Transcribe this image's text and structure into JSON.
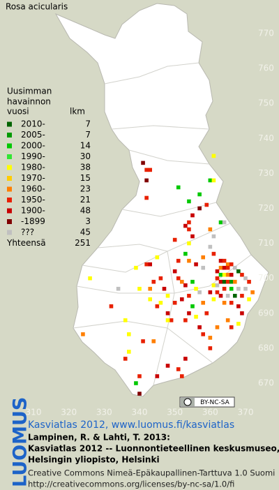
{
  "title": "Rosa acicularis",
  "legend": {
    "heading": [
      "Uusimman",
      "havainnon",
      "vuosi"
    ],
    "count_heading": "lkm",
    "items": [
      {
        "label": "2010-",
        "count": 7,
        "color": "#006400"
      },
      {
        "label": "2005-",
        "count": 7,
        "color": "#009a00"
      },
      {
        "label": "2000-",
        "count": 14,
        "color": "#00c800"
      },
      {
        "label": "1990-",
        "count": 30,
        "color": "#33e633"
      },
      {
        "label": "1980-",
        "count": 38,
        "color": "#ffff00"
      },
      {
        "label": "1970-",
        "count": 15,
        "color": "#ffcc00"
      },
      {
        "label": "1960-",
        "count": 23,
        "color": "#ff7f00"
      },
      {
        "label": "1950-",
        "count": 21,
        "color": "#e82000"
      },
      {
        "label": "1900-",
        "count": 48,
        "color": "#c80000"
      },
      {
        "label": "-1899",
        "count": 3,
        "color": "#800000"
      },
      {
        "label": "???",
        "count": 45,
        "color": "#c0c0c0"
      }
    ],
    "total_label": "Yhteensä",
    "total": 251
  },
  "map": {
    "xlim": [
      310,
      370
    ],
    "ylim": [
      670,
      770
    ],
    "xticks": [
      310,
      320,
      330,
      340,
      350,
      360,
      370
    ],
    "yticks": [
      670,
      680,
      690,
      700,
      710,
      720,
      730,
      740,
      750,
      760,
      770
    ],
    "points": [
      {
        "x": 342,
        "y": 731,
        "group": 7
      },
      {
        "x": 343,
        "y": 731,
        "group": 7
      },
      {
        "x": 341,
        "y": 733,
        "group": 9
      },
      {
        "x": 342,
        "y": 728,
        "group": 9
      },
      {
        "x": 351,
        "y": 726,
        "group": 2
      },
      {
        "x": 361,
        "y": 735,
        "group": 4
      },
      {
        "x": 360,
        "y": 728,
        "group": 2
      },
      {
        "x": 361,
        "y": 728,
        "group": 4
      },
      {
        "x": 342,
        "y": 723,
        "group": 7
      },
      {
        "x": 357,
        "y": 724,
        "group": 2
      },
      {
        "x": 354,
        "y": 722,
        "group": 2
      },
      {
        "x": 357,
        "y": 720,
        "group": 9
      },
      {
        "x": 359,
        "y": 721,
        "group": 7
      },
      {
        "x": 355,
        "y": 718,
        "group": 8
      },
      {
        "x": 354,
        "y": 716,
        "group": 7
      },
      {
        "x": 353,
        "y": 715,
        "group": 8
      },
      {
        "x": 354,
        "y": 714,
        "group": 7
      },
      {
        "x": 360,
        "y": 714,
        "group": 6
      },
      {
        "x": 363,
        "y": 716,
        "group": 2
      },
      {
        "x": 364,
        "y": 716,
        "group": 10
      },
      {
        "x": 361,
        "y": 712,
        "group": 10
      },
      {
        "x": 354,
        "y": 710,
        "group": 4
      },
      {
        "x": 350,
        "y": 711,
        "group": 7
      },
      {
        "x": 355,
        "y": 712,
        "group": 8
      },
      {
        "x": 360,
        "y": 709,
        "group": 10
      },
      {
        "x": 361,
        "y": 707,
        "group": 7
      },
      {
        "x": 358,
        "y": 706,
        "group": 6
      },
      {
        "x": 353,
        "y": 707,
        "group": 2
      },
      {
        "x": 342,
        "y": 704,
        "group": 7
      },
      {
        "x": 343,
        "y": 704,
        "group": 8
      },
      {
        "x": 345,
        "y": 706,
        "group": 4
      },
      {
        "x": 351,
        "y": 705,
        "group": 7
      },
      {
        "x": 354,
        "y": 705,
        "group": 6
      },
      {
        "x": 356,
        "y": 704,
        "group": 8
      },
      {
        "x": 358,
        "y": 703,
        "group": 10
      },
      {
        "x": 363,
        "y": 705,
        "group": 8
      },
      {
        "x": 364,
        "y": 705,
        "group": 7
      },
      {
        "x": 365,
        "y": 704,
        "group": 6
      },
      {
        "x": 366,
        "y": 704,
        "group": 7
      },
      {
        "x": 363,
        "y": 703,
        "group": 6
      },
      {
        "x": 364,
        "y": 703,
        "group": 8
      },
      {
        "x": 365,
        "y": 703,
        "group": 7
      },
      {
        "x": 367,
        "y": 703,
        "group": 10
      },
      {
        "x": 368,
        "y": 702,
        "group": 0
      },
      {
        "x": 362,
        "y": 702,
        "group": 8
      },
      {
        "x": 363,
        "y": 701,
        "group": 2
      },
      {
        "x": 364,
        "y": 701,
        "group": 4
      },
      {
        "x": 365,
        "y": 701,
        "group": 6
      },
      {
        "x": 366,
        "y": 701,
        "group": 8
      },
      {
        "x": 369,
        "y": 701,
        "group": 7
      },
      {
        "x": 362,
        "y": 700,
        "group": 7
      },
      {
        "x": 363,
        "y": 699,
        "group": 8
      },
      {
        "x": 364,
        "y": 699,
        "group": 0
      },
      {
        "x": 365,
        "y": 699,
        "group": 7
      },
      {
        "x": 366,
        "y": 699,
        "group": 1
      },
      {
        "x": 367,
        "y": 699,
        "group": 6
      },
      {
        "x": 370,
        "y": 700,
        "group": 10
      },
      {
        "x": 371,
        "y": 699,
        "group": 7
      },
      {
        "x": 361,
        "y": 698,
        "group": 4
      },
      {
        "x": 362,
        "y": 698,
        "group": 10
      },
      {
        "x": 364,
        "y": 697,
        "group": 7
      },
      {
        "x": 366,
        "y": 697,
        "group": 2
      },
      {
        "x": 368,
        "y": 697,
        "group": 10
      },
      {
        "x": 360,
        "y": 696,
        "group": 8
      },
      {
        "x": 362,
        "y": 696,
        "group": 7
      },
      {
        "x": 363,
        "y": 695,
        "group": 8
      },
      {
        "x": 365,
        "y": 695,
        "group": 10
      },
      {
        "x": 367,
        "y": 695,
        "group": 0
      },
      {
        "x": 369,
        "y": 695,
        "group": 7
      },
      {
        "x": 361,
        "y": 694,
        "group": 4
      },
      {
        "x": 364,
        "y": 693,
        "group": 6
      },
      {
        "x": 366,
        "y": 693,
        "group": 7
      },
      {
        "x": 368,
        "y": 692,
        "group": 8
      },
      {
        "x": 371,
        "y": 694,
        "group": 4
      },
      {
        "x": 372,
        "y": 696,
        "group": 6
      },
      {
        "x": 370,
        "y": 697,
        "group": 10
      },
      {
        "x": 350,
        "y": 702,
        "group": 8
      },
      {
        "x": 351,
        "y": 700,
        "group": 7
      },
      {
        "x": 352,
        "y": 699,
        "group": 6
      },
      {
        "x": 353,
        "y": 698,
        "group": 8
      },
      {
        "x": 355,
        "y": 699,
        "group": 2
      },
      {
        "x": 356,
        "y": 697,
        "group": 4
      },
      {
        "x": 357,
        "y": 696,
        "group": 10
      },
      {
        "x": 354,
        "y": 695,
        "group": 7
      },
      {
        "x": 352,
        "y": 694,
        "group": 8
      },
      {
        "x": 350,
        "y": 693,
        "group": 7
      },
      {
        "x": 355,
        "y": 692,
        "group": 2
      },
      {
        "x": 358,
        "y": 693,
        "group": 6
      },
      {
        "x": 359,
        "y": 690,
        "group": 7
      },
      {
        "x": 356,
        "y": 689,
        "group": 4
      },
      {
        "x": 353,
        "y": 688,
        "group": 7
      },
      {
        "x": 354,
        "y": 690,
        "group": 8
      },
      {
        "x": 346,
        "y": 700,
        "group": 7
      },
      {
        "x": 347,
        "y": 697,
        "group": 8
      },
      {
        "x": 348,
        "y": 695,
        "group": 4
      },
      {
        "x": 344,
        "y": 699,
        "group": 7
      },
      {
        "x": 343,
        "y": 697,
        "group": 6
      },
      {
        "x": 345,
        "y": 692,
        "group": 7
      },
      {
        "x": 348,
        "y": 690,
        "group": 8
      },
      {
        "x": 349,
        "y": 688,
        "group": 7
      },
      {
        "x": 326,
        "y": 700,
        "group": 4
      },
      {
        "x": 340,
        "y": 697,
        "group": 4
      },
      {
        "x": 343,
        "y": 694,
        "group": 4
      },
      {
        "x": 346,
        "y": 693,
        "group": 4
      },
      {
        "x": 348,
        "y": 688,
        "group": 4
      },
      {
        "x": 336,
        "y": 688,
        "group": 4
      },
      {
        "x": 324,
        "y": 684,
        "group": 6
      },
      {
        "x": 337,
        "y": 679,
        "group": 4
      },
      {
        "x": 341,
        "y": 682,
        "group": 7
      },
      {
        "x": 344,
        "y": 682,
        "group": 6
      },
      {
        "x": 340,
        "y": 672,
        "group": 7
      },
      {
        "x": 339,
        "y": 670,
        "group": 2
      },
      {
        "x": 340,
        "y": 667,
        "group": 9
      },
      {
        "x": 348,
        "y": 675,
        "group": 8
      },
      {
        "x": 351,
        "y": 674,
        "group": 7
      },
      {
        "x": 353,
        "y": 677,
        "group": 8
      },
      {
        "x": 360,
        "y": 680,
        "group": 7
      },
      {
        "x": 360,
        "y": 683,
        "group": 6
      },
      {
        "x": 352,
        "y": 672,
        "group": 7
      },
      {
        "x": 345,
        "y": 672,
        "group": 8
      },
      {
        "x": 357,
        "y": 686,
        "group": 8
      },
      {
        "x": 358,
        "y": 684,
        "group": 7
      },
      {
        "x": 362,
        "y": 686,
        "group": 6
      },
      {
        "x": 366,
        "y": 686,
        "group": 7
      },
      {
        "x": 365,
        "y": 688,
        "group": 6
      },
      {
        "x": 369,
        "y": 690,
        "group": 8
      },
      {
        "x": 368,
        "y": 687,
        "group": 4
      },
      {
        "x": 336,
        "y": 677,
        "group": 7
      },
      {
        "x": 337,
        "y": 684,
        "group": 4
      },
      {
        "x": 334,
        "y": 697,
        "group": 10
      },
      {
        "x": 332,
        "y": 692,
        "group": 7
      },
      {
        "x": 339,
        "y": 703,
        "group": 4
      }
    ]
  },
  "cc_badge": "BY-NC-SA",
  "footer": {
    "logo": "LUOMUS",
    "link": "Kasviatlas 2012, www.luomus.fi/kasviatlas",
    "citation": [
      "Lampinen, R. & Lahti, T. 2013:",
      "Kasviatlas 2012 -- Luonnontieteellinen keskusmuseo,",
      "Helsingin yliopisto, Helsinki"
    ],
    "license": [
      "Creative Commons Nimeä-Epäkaupallinen-Tarttuva 1.0 Suomi",
      "http://creativecommons.org/licenses/by-nc-sa/1.0/fi"
    ]
  }
}
